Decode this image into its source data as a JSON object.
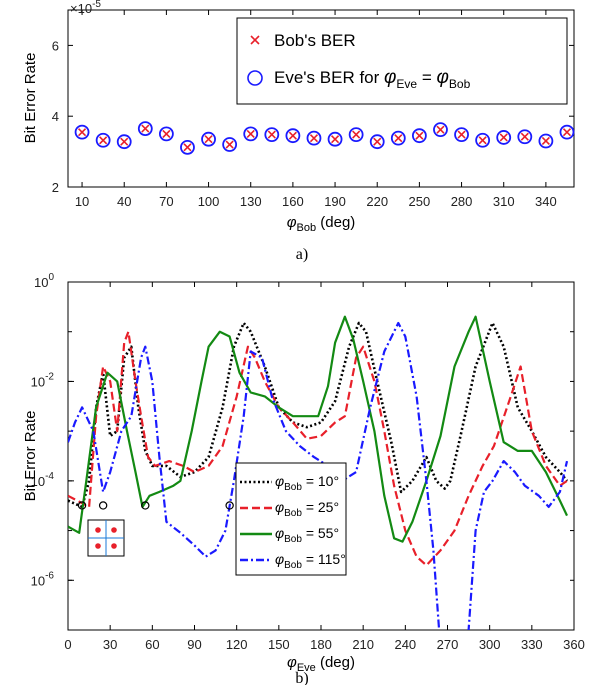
{
  "chart_data": [
    {
      "type": "scatter",
      "ylabel": "Bit Error Rate",
      "xlabel_symbol": "φ",
      "xlabel_sub": "Bob",
      "xlabel_unit": " (deg)",
      "exponent_label": "×10",
      "exponent_sup": "-5",
      "caption": "a)",
      "xlim": [
        0,
        360
      ],
      "ylim": [
        2,
        7
      ],
      "xticks": [
        10,
        40,
        70,
        100,
        130,
        160,
        190,
        220,
        250,
        280,
        310,
        340
      ],
      "yticks": [
        2,
        4,
        6
      ],
      "x": [
        10,
        25,
        40,
        55,
        70,
        85,
        100,
        115,
        130,
        145,
        160,
        175,
        190,
        205,
        220,
        235,
        250,
        265,
        280,
        295,
        310,
        325,
        340,
        355
      ],
      "series": [
        {
          "name": "Bob's BER",
          "marker": "x",
          "color": "#e8202a",
          "values": [
            3.55,
            3.32,
            3.28,
            3.65,
            3.5,
            3.12,
            3.35,
            3.2,
            3.5,
            3.48,
            3.45,
            3.38,
            3.35,
            3.48,
            3.28,
            3.38,
            3.45,
            3.62,
            3.48,
            3.32,
            3.4,
            3.42,
            3.3,
            3.55
          ]
        },
        {
          "name": "Eve's BER for",
          "name_suffix_symbol": "φ",
          "name_sub_eve": "Eve",
          "name_eq": " = ",
          "name_sub_bob": "Bob",
          "marker": "o",
          "color": "#1a1aff",
          "values": [
            3.55,
            3.32,
            3.28,
            3.65,
            3.5,
            3.12,
            3.35,
            3.2,
            3.5,
            3.48,
            3.45,
            3.38,
            3.35,
            3.48,
            3.28,
            3.38,
            3.45,
            3.62,
            3.48,
            3.32,
            3.4,
            3.42,
            3.3,
            3.55
          ]
        }
      ],
      "legend_position": "top-right",
      "grid": false
    },
    {
      "type": "line",
      "yscale": "log",
      "ylabel": "Bit Error Rate",
      "xlabel_symbol": "φ",
      "xlabel_sub": "Eve",
      "xlabel_unit": " (deg)",
      "caption": "b)",
      "xlim": [
        0,
        360
      ],
      "ylim": [
        1e-07,
        1
      ],
      "xticks": [
        0,
        30,
        60,
        90,
        120,
        150,
        180,
        210,
        240,
        270,
        300,
        330,
        360
      ],
      "yticks": [
        {
          "base": "10",
          "exp": "0",
          "value": 1
        },
        {
          "base": "10",
          "exp": "-2",
          "value": 0.01
        },
        {
          "base": "10",
          "exp": "-4",
          "value": 0.0001
        },
        {
          "base": "10",
          "exp": "-6",
          "value": 1e-06
        }
      ],
      "legend_position": "bottom-center",
      "grid": false,
      "series": [
        {
          "name_symbol": "φ",
          "name_sub": "Bob",
          "name_value": " = 10°",
          "color": "#000000",
          "dash": "dotted",
          "points": [
            [
              0,
              4e-05
            ],
            [
              10,
              3e-05
            ],
            [
              15,
              0.0001
            ],
            [
              20,
              0.003
            ],
            [
              25,
              0.015
            ],
            [
              30,
              0.0008
            ],
            [
              35,
              0.001
            ],
            [
              40,
              0.03
            ],
            [
              45,
              0.05
            ],
            [
              50,
              0.003
            ],
            [
              55,
              0.0004
            ],
            [
              60,
              0.0002
            ],
            [
              70,
              0.0002
            ],
            [
              80,
              0.00012
            ],
            [
              90,
              0.00015
            ],
            [
              100,
              0.0003
            ],
            [
              110,
              0.003
            ],
            [
              118,
              0.05
            ],
            [
              125,
              0.15
            ],
            [
              130,
              0.1
            ],
            [
              140,
              0.02
            ],
            [
              150,
              0.003
            ],
            [
              160,
              0.0015
            ],
            [
              170,
              0.0012
            ],
            [
              180,
              0.0015
            ],
            [
              190,
              0.004
            ],
            [
              200,
              0.05
            ],
            [
              207,
              0.15
            ],
            [
              212,
              0.1
            ],
            [
              220,
              0.01
            ],
            [
              230,
              0.0006
            ],
            [
              237,
              6e-05
            ],
            [
              245,
              0.0001
            ],
            [
              255,
              0.0003
            ],
            [
              262,
              0.0001
            ],
            [
              268,
              7e-05
            ],
            [
              272,
              0.0001
            ],
            [
              280,
              0.001
            ],
            [
              290,
              0.02
            ],
            [
              302,
              0.15
            ],
            [
              310,
              0.05
            ],
            [
              320,
              0.003
            ],
            [
              330,
              0.001
            ],
            [
              340,
              0.0003
            ],
            [
              350,
              0.00015
            ],
            [
              355,
              0.0001
            ]
          ]
        },
        {
          "name_symbol": "φ",
          "name_sub": "Bob",
          "name_value": " = 25°",
          "color": "#e8202a",
          "dash": "dashed",
          "points": [
            [
              0,
              5e-05
            ],
            [
              15,
              3e-05
            ],
            [
              20,
              0.002
            ],
            [
              25,
              0.02
            ],
            [
              30,
              0.01
            ],
            [
              35,
              0.001
            ],
            [
              40,
              0.06
            ],
            [
              43,
              0.1
            ],
            [
              48,
              0.01
            ],
            [
              52,
              0.002
            ],
            [
              57,
              0.0003
            ],
            [
              62,
              0.0002
            ],
            [
              72,
              0.00025
            ],
            [
              82,
              0.0002
            ],
            [
              90,
              0.00015
            ],
            [
              100,
              0.0002
            ],
            [
              110,
              0.0005
            ],
            [
              120,
              0.005
            ],
            [
              128,
              0.05
            ],
            [
              133,
              0.03
            ],
            [
              140,
              0.01
            ],
            [
              150,
              0.003
            ],
            [
              160,
              0.0015
            ],
            [
              170,
              0.0007
            ],
            [
              180,
              0.0008
            ],
            [
              190,
              0.0015
            ],
            [
              197,
              0.002
            ],
            [
              205,
              0.03
            ],
            [
              210,
              0.05
            ],
            [
              218,
              0.01
            ],
            [
              225,
              0.001
            ],
            [
              232,
              8e-05
            ],
            [
              240,
              1e-05
            ],
            [
              248,
              3e-06
            ],
            [
              255,
              2e-06
            ],
            [
              265,
              4e-06
            ],
            [
              275,
              1e-05
            ],
            [
              285,
              5e-05
            ],
            [
              295,
              0.0002
            ],
            [
              303,
              0.0005
            ],
            [
              315,
              0.005
            ],
            [
              322,
              0.02
            ],
            [
              330,
              0.001
            ],
            [
              340,
              0.0002
            ],
            [
              350,
              8e-05
            ],
            [
              355,
              0.0001
            ]
          ]
        },
        {
          "name_symbol": "φ",
          "name_sub": "Bob",
          "name_value": " = 55°",
          "color": "#138a13",
          "dash": "solid",
          "points": [
            [
              0,
              1.2e-05
            ],
            [
              8,
              9e-06
            ],
            [
              13,
              0.0001
            ],
            [
              20,
              0.003
            ],
            [
              28,
              0.015
            ],
            [
              35,
              0.01
            ],
            [
              42,
              0.001
            ],
            [
              48,
              0.00015
            ],
            [
              53,
              3e-05
            ],
            [
              58,
              5e-05
            ],
            [
              65,
              6e-05
            ],
            [
              75,
              8e-05
            ],
            [
              80,
              0.0001
            ],
            [
              88,
              0.001
            ],
            [
              95,
              0.01
            ],
            [
              100,
              0.05
            ],
            [
              108,
              0.1
            ],
            [
              115,
              0.08
            ],
            [
              122,
              0.015
            ],
            [
              130,
              0.006
            ],
            [
              140,
              0.005
            ],
            [
              150,
              0.003
            ],
            [
              160,
              0.002
            ],
            [
              170,
              0.002
            ],
            [
              178,
              0.002
            ],
            [
              185,
              0.008
            ],
            [
              190,
              0.06
            ],
            [
              197,
              0.2
            ],
            [
              203,
              0.07
            ],
            [
              210,
              0.01
            ],
            [
              218,
              0.001
            ],
            [
              225,
              5e-05
            ],
            [
              232,
              7e-06
            ],
            [
              238,
              6e-06
            ],
            [
              245,
              1.5e-05
            ],
            [
              255,
              0.0001
            ],
            [
              265,
              0.0008
            ],
            [
              275,
              0.02
            ],
            [
              285,
              0.1
            ],
            [
              290,
              0.2
            ],
            [
              300,
              0.01
            ],
            [
              310,
              0.0006
            ],
            [
              320,
              0.0004
            ],
            [
              330,
              0.0004
            ],
            [
              340,
              0.00015
            ],
            [
              350,
              4e-05
            ],
            [
              355,
              2e-05
            ]
          ]
        },
        {
          "name_symbol": "φ",
          "name_sub": "Bob",
          "name_value": " = 115°",
          "color": "#1a1aff",
          "dash": "dashdot",
          "points": [
            [
              0,
              0.0006
            ],
            [
              5,
              0.0015
            ],
            [
              10,
              0.003
            ],
            [
              18,
              0.001
            ],
            [
              25,
              6e-05
            ],
            [
              30,
              0.00015
            ],
            [
              38,
              0.001
            ],
            [
              45,
              0.002
            ],
            [
              52,
              0.03
            ],
            [
              55,
              0.05
            ],
            [
              60,
              0.01
            ],
            [
              65,
              0.0003
            ],
            [
              70,
              1.5e-05
            ],
            [
              80,
              9e-06
            ],
            [
              90,
              5e-06
            ],
            [
              98,
              3e-06
            ],
            [
              105,
              4e-06
            ],
            [
              112,
              1e-05
            ],
            [
              118,
              0.0001
            ],
            [
              125,
              0.002
            ],
            [
              130,
              0.04
            ],
            [
              138,
              0.03
            ],
            [
              145,
              0.005
            ],
            [
              155,
              0.001
            ],
            [
              165,
              0.0005
            ],
            [
              175,
              0.0003
            ],
            [
              185,
              0.0002
            ],
            [
              195,
              0.0001
            ],
            [
              205,
              0.00015
            ],
            [
              215,
              0.003
            ],
            [
              225,
              0.04
            ],
            [
              235,
              0.15
            ],
            [
              240,
              0.08
            ],
            [
              248,
              0.005
            ],
            [
              255,
              0.0001
            ],
            [
              260,
              4e-06
            ],
            [
              264,
              1e-07
            ],
            [
              270,
              3e-08
            ],
            [
              278,
              1e-08
            ],
            [
              285,
              1e-07
            ],
            [
              290,
              1e-05
            ],
            [
              296,
              6e-05
            ],
            [
              302,
              0.0001
            ],
            [
              310,
              0.00025
            ],
            [
              318,
              0.00015
            ],
            [
              325,
              8e-05
            ],
            [
              335,
              5e-05
            ],
            [
              342,
              3e-05
            ],
            [
              350,
              6e-05
            ],
            [
              355,
              0.00025
            ]
          ]
        }
      ],
      "start_markers": {
        "color": "#000000",
        "points": [
          [
            10,
            3.2e-05
          ],
          [
            25,
            3.2e-05
          ],
          [
            55,
            3.2e-05
          ],
          [
            115,
            3.2e-05
          ]
        ]
      },
      "inset": {
        "dots": 4,
        "dot_color": "#e8202a",
        "line_color": "#1a7ad9"
      }
    }
  ]
}
